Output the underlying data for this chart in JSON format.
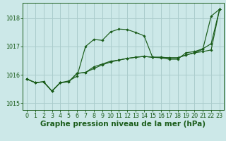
{
  "background_color": "#cce8e8",
  "grid_color": "#aacccc",
  "line_color": "#1a5c1a",
  "marker_color": "#1a5c1a",
  "xlabel": "Graphe pression niveau de la mer (hPa)",
  "xlabel_color": "#1a5c1a",
  "xlim": [
    -0.5,
    23.5
  ],
  "ylim": [
    1014.75,
    1018.55
  ],
  "yticks": [
    1015,
    1016,
    1017,
    1018
  ],
  "xticks": [
    0,
    1,
    2,
    3,
    4,
    5,
    6,
    7,
    8,
    9,
    10,
    11,
    12,
    13,
    14,
    15,
    16,
    17,
    18,
    19,
    20,
    21,
    22,
    23
  ],
  "series1_x": [
    0,
    1,
    2,
    3,
    4,
    5,
    6,
    7,
    8,
    9,
    10,
    11,
    12,
    13,
    14,
    15,
    16,
    17,
    18,
    19,
    20,
    21,
    22,
    23
  ],
  "series1_y": [
    1015.85,
    1015.72,
    1015.75,
    1015.42,
    1015.72,
    1015.78,
    1015.95,
    1017.0,
    1017.25,
    1017.22,
    1017.52,
    1017.62,
    1017.6,
    1017.5,
    1017.38,
    1016.62,
    1016.6,
    1016.55,
    1016.55,
    1016.78,
    1016.82,
    1016.92,
    1017.1,
    1018.32
  ],
  "series2_x": [
    0,
    1,
    2,
    3,
    4,
    5,
    6,
    7,
    8,
    9,
    10,
    11,
    12,
    13,
    14,
    15,
    16,
    17,
    18,
    19,
    20,
    21,
    22,
    23
  ],
  "series2_y": [
    1015.85,
    1015.72,
    1015.75,
    1015.42,
    1015.72,
    1015.75,
    1016.05,
    1016.08,
    1016.28,
    1016.38,
    1016.48,
    1016.52,
    1016.58,
    1016.62,
    1016.65,
    1016.62,
    1016.62,
    1016.6,
    1016.6,
    1016.7,
    1016.78,
    1016.82,
    1016.88,
    1018.32
  ],
  "series3_x": [
    0,
    1,
    2,
    3,
    4,
    5,
    6,
    7,
    8,
    9,
    10,
    11,
    12,
    13,
    14,
    15,
    16,
    17,
    18,
    19,
    20,
    21,
    22,
    23
  ],
  "series3_y": [
    1015.85,
    1015.72,
    1015.75,
    1015.42,
    1015.72,
    1015.75,
    1016.05,
    1016.08,
    1016.22,
    1016.35,
    1016.45,
    1016.52,
    1016.58,
    1016.62,
    1016.65,
    1016.62,
    1016.62,
    1016.6,
    1016.6,
    1016.7,
    1016.78,
    1016.9,
    1018.08,
    1018.32
  ],
  "tick_fontsize": 5.8,
  "xlabel_fontsize": 7.5
}
